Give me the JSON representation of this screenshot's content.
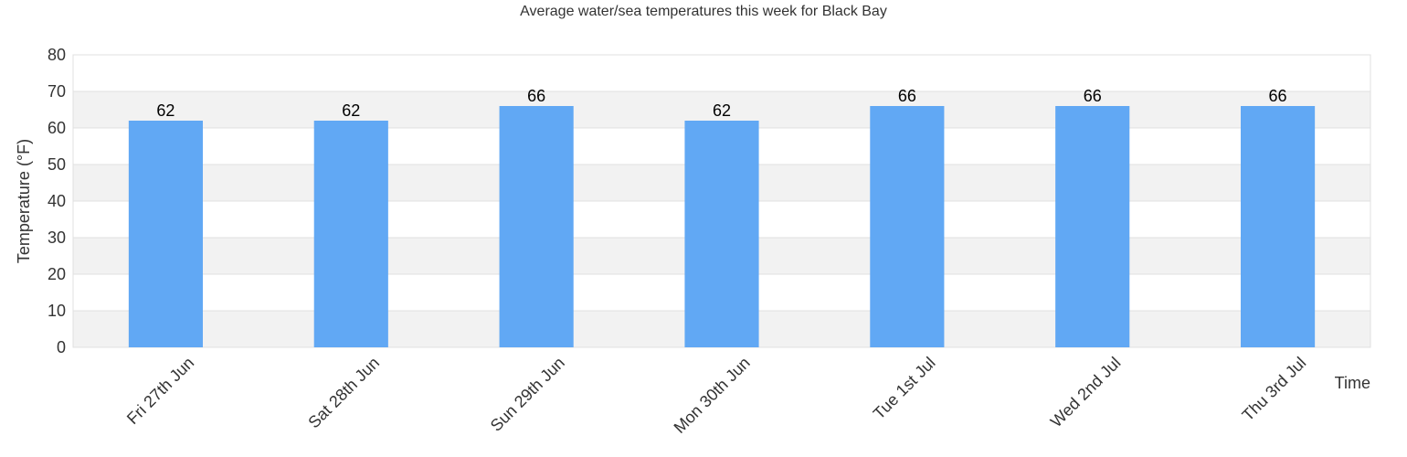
{
  "chart_data": {
    "type": "bar",
    "title": "Average water/sea temperatures this week for Black Bay",
    "xlabel": "Time",
    "ylabel": "Temperature (°F)",
    "categories": [
      "Fri 27th Jun",
      "Sat 28th Jun",
      "Sun 29th Jun",
      "Mon 30th Jun",
      "Tue 1st Jul",
      "Wed 2nd Jul",
      "Thu 3rd Jul"
    ],
    "values": [
      62,
      62,
      66,
      62,
      66,
      66,
      66
    ],
    "ylim": [
      0,
      80
    ],
    "yticks": [
      0,
      10,
      20,
      30,
      40,
      50,
      60,
      70,
      80
    ],
    "grid": true,
    "legend": "none",
    "colors": {
      "bar": "#61a8f4",
      "band": "#f2f2f2",
      "gridline": "#e0e0e0",
      "text": "#333333"
    }
  }
}
